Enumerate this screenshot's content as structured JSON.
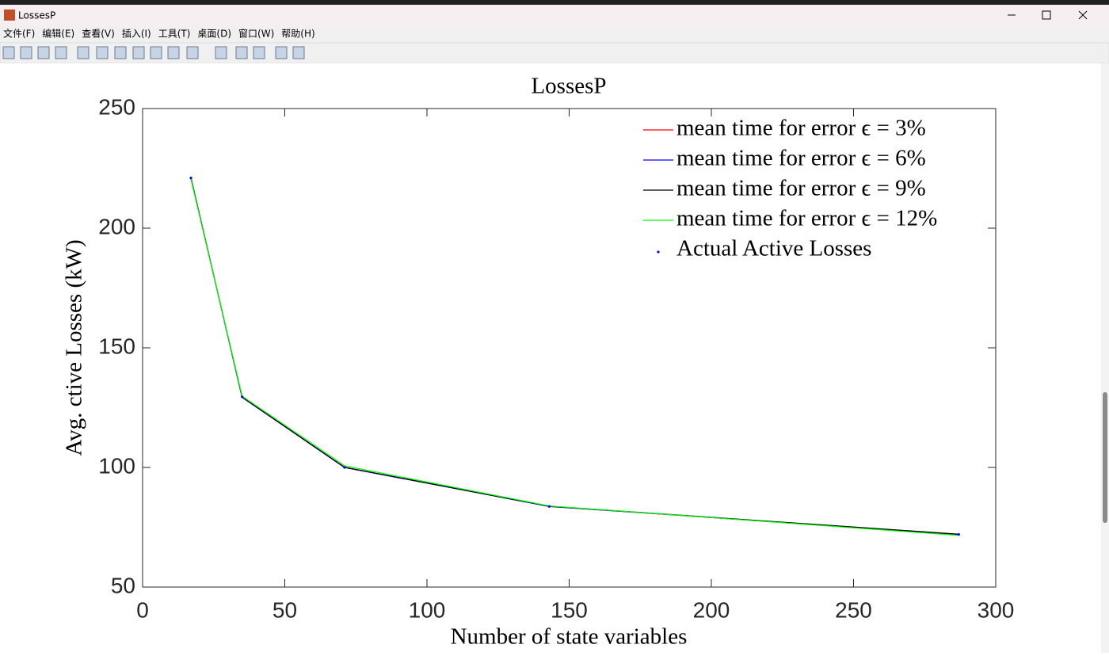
{
  "window": {
    "title": "LossesP",
    "menu": [
      "文件(F)",
      "编辑(E)",
      "查看(V)",
      "插入(I)",
      "工具(T)",
      "桌面(D)",
      "窗口(W)",
      "帮助(H)"
    ]
  },
  "chart_data": {
    "type": "line",
    "title": "LossesP",
    "x_label": "Number of state variables",
    "y_label": "Avg. ctive Losses (kW)",
    "x": [
      17,
      35,
      71,
      143,
      287
    ],
    "series": [
      {
        "name": "mean time for error ϵ = 3%",
        "color": "#ff0000",
        "values": [
          221,
          129.3,
          100,
          83.7,
          72
        ]
      },
      {
        "name": "mean time for error ϵ = 6%",
        "color": "#0000ff",
        "values": [
          221,
          129.3,
          100,
          83.7,
          72
        ]
      },
      {
        "name": "mean time for error ϵ = 9%",
        "color": "#000000",
        "values": [
          221,
          129.4,
          100.1,
          83.8,
          72.1
        ]
      },
      {
        "name": "mean time for error ϵ = 12%",
        "color": "#00ff00",
        "values": [
          220.5,
          129.8,
          100.7,
          83.9,
          71.6
        ]
      },
      {
        "name": "Actual Active Losses",
        "color": "#0000ff",
        "marker": ".",
        "linestyle": "none",
        "values": [
          221,
          129.5,
          100,
          83.7,
          72
        ]
      }
    ],
    "xlim": [
      0,
      300
    ],
    "xticks": [
      0,
      50,
      100,
      150,
      200,
      250,
      300
    ],
    "ylim": [
      50,
      250
    ],
    "yticks": [
      50,
      100,
      150,
      200,
      250
    ],
    "grid": false,
    "box": true,
    "legend": "upper right"
  }
}
